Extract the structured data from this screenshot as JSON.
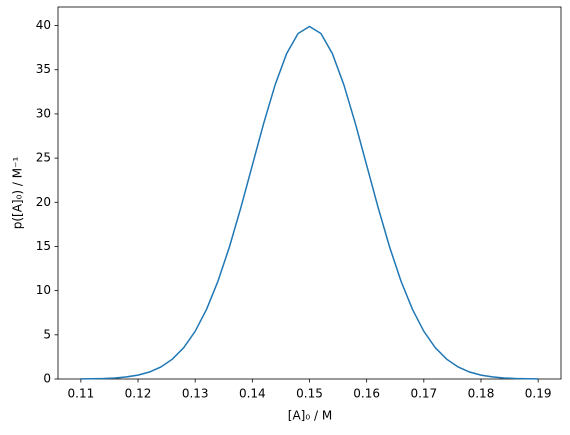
{
  "chart_data": {
    "type": "line",
    "xlabel": "[A]₀ / M",
    "ylabel": "p([A]₀) / M⁻¹",
    "x": [
      0.11,
      0.112,
      0.114,
      0.116,
      0.118,
      0.12,
      0.122,
      0.124,
      0.126,
      0.128,
      0.13,
      0.132,
      0.134,
      0.136,
      0.138,
      0.14,
      0.142,
      0.144,
      0.146,
      0.148,
      0.15,
      0.152,
      0.154,
      0.156,
      0.158,
      0.16,
      0.162,
      0.164,
      0.166,
      0.168,
      0.17,
      0.172,
      0.174,
      0.176,
      0.178,
      0.18,
      0.182,
      0.184,
      0.186,
      0.188,
      0.19
    ],
    "series": [
      {
        "color": "#1f77b4",
        "values": [
          0.01,
          0.03,
          0.06,
          0.12,
          0.24,
          0.44,
          0.79,
          1.36,
          2.24,
          3.55,
          5.4,
          7.9,
          11.09,
          14.97,
          19.42,
          24.2,
          28.97,
          33.32,
          36.83,
          39.1,
          39.89,
          39.1,
          36.83,
          33.32,
          28.97,
          24.2,
          19.42,
          14.97,
          11.09,
          7.9,
          5.4,
          3.55,
          2.24,
          1.36,
          0.79,
          0.44,
          0.24,
          0.12,
          0.06,
          0.03,
          0.01
        ]
      }
    ],
    "xlim": [
      0.106,
      0.194
    ],
    "ylim": [
      0,
      42.1
    ],
    "xticks": [
      0.11,
      0.12,
      0.13,
      0.14,
      0.15,
      0.16,
      0.17,
      0.18,
      0.19
    ],
    "yticks": [
      0,
      5,
      10,
      15,
      20,
      25,
      30,
      35,
      40
    ]
  }
}
